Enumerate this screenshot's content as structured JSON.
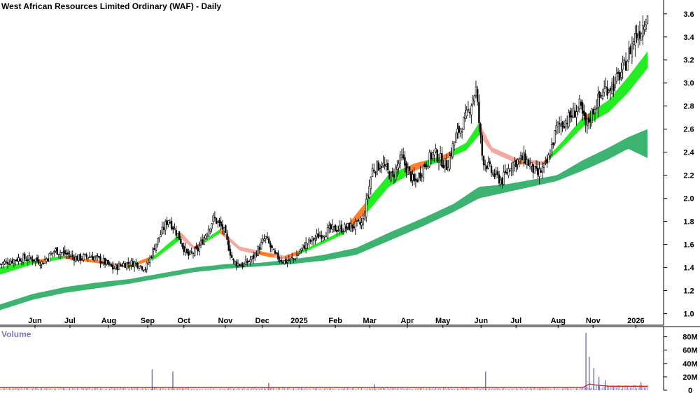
{
  "chart_data": [
    {
      "type": "candlestick",
      "title": "West African Resources Limited Ordinary (WAF) - Daily",
      "ylim": [
        0.9,
        3.72
      ],
      "y_ticks": [
        "1.0",
        "1.2",
        "1.4",
        "1.6",
        "1.8",
        "2.0",
        "2.2",
        "2.4",
        "2.6",
        "2.8",
        "3.0",
        "3.2",
        "3.4",
        "3.6"
      ],
      "x_ticks": [
        {
          "label": "Jun",
          "t": 0.054
        },
        {
          "label": "Jul",
          "t": 0.108
        },
        {
          "label": "Aug",
          "t": 0.168
        },
        {
          "label": "Sep",
          "t": 0.228
        },
        {
          "label": "Oct",
          "t": 0.284
        },
        {
          "label": "Nov",
          "t": 0.348
        },
        {
          "label": "Dec",
          "t": 0.405
        },
        {
          "label": "2025",
          "t": 0.462
        },
        {
          "label": "Feb",
          "t": 0.518
        },
        {
          "label": "Mar",
          "t": 0.571
        },
        {
          "label": "Apr",
          "t": 0.629
        },
        {
          "label": "May",
          "t": 0.684
        },
        {
          "label": "Jun",
          "t": 0.743
        },
        {
          "label": "Jul",
          "t": 0.797
        },
        {
          "label": "Aug",
          "t": 0.862
        },
        {
          "label": "Nov",
          "t": 0.916
        },
        {
          "label": "2026",
          "t": 0.982
        }
      ],
      "price_path": [
        [
          0.0,
          1.43
        ],
        [
          0.03,
          1.48
        ],
        [
          0.055,
          1.47
        ],
        [
          0.065,
          1.44
        ],
        [
          0.085,
          1.55
        ],
        [
          0.1,
          1.52
        ],
        [
          0.12,
          1.48
        ],
        [
          0.14,
          1.5
        ],
        [
          0.16,
          1.45
        ],
        [
          0.175,
          1.39
        ],
        [
          0.19,
          1.43
        ],
        [
          0.21,
          1.44
        ],
        [
          0.225,
          1.39
        ],
        [
          0.24,
          1.6
        ],
        [
          0.26,
          1.82
        ],
        [
          0.275,
          1.68
        ],
        [
          0.29,
          1.5
        ],
        [
          0.305,
          1.55
        ],
        [
          0.33,
          1.83
        ],
        [
          0.345,
          1.73
        ],
        [
          0.36,
          1.45
        ],
        [
          0.375,
          1.42
        ],
        [
          0.39,
          1.48
        ],
        [
          0.41,
          1.66
        ],
        [
          0.425,
          1.5
        ],
        [
          0.44,
          1.45
        ],
        [
          0.455,
          1.48
        ],
        [
          0.47,
          1.59
        ],
        [
          0.49,
          1.67
        ],
        [
          0.51,
          1.73
        ],
        [
          0.53,
          1.74
        ],
        [
          0.56,
          1.78
        ],
        [
          0.575,
          2.25
        ],
        [
          0.59,
          2.3
        ],
        [
          0.605,
          2.18
        ],
        [
          0.62,
          2.35
        ],
        [
          0.64,
          2.13
        ],
        [
          0.655,
          2.28
        ],
        [
          0.67,
          2.4
        ],
        [
          0.69,
          2.28
        ],
        [
          0.705,
          2.55
        ],
        [
          0.72,
          2.7
        ],
        [
          0.735,
          2.95
        ],
        [
          0.745,
          2.35
        ],
        [
          0.76,
          2.22
        ],
        [
          0.775,
          2.15
        ],
        [
          0.79,
          2.3
        ],
        [
          0.81,
          2.35
        ],
        [
          0.83,
          2.2
        ],
        [
          0.845,
          2.3
        ],
        [
          0.86,
          2.62
        ],
        [
          0.88,
          2.7
        ],
        [
          0.895,
          2.8
        ],
        [
          0.905,
          2.62
        ],
        [
          0.92,
          2.82
        ],
        [
          0.935,
          2.95
        ],
        [
          0.95,
          3.0
        ],
        [
          0.965,
          3.15
        ],
        [
          0.98,
          3.4
        ],
        [
          0.99,
          3.46
        ],
        [
          1.0,
          3.62
        ]
      ],
      "short_band": [
        [
          0.0,
          1.34,
          1.4
        ],
        [
          0.05,
          1.43,
          1.46
        ],
        [
          0.1,
          1.48,
          1.5
        ],
        [
          0.15,
          1.44,
          1.46
        ],
        [
          0.2,
          1.4,
          1.42
        ],
        [
          0.24,
          1.48,
          1.51
        ],
        [
          0.28,
          1.65,
          1.7
        ],
        [
          0.3,
          1.56,
          1.58
        ],
        [
          0.34,
          1.7,
          1.73
        ],
        [
          0.37,
          1.55,
          1.58
        ],
        [
          0.41,
          1.5,
          1.53
        ],
        [
          0.44,
          1.47,
          1.5
        ],
        [
          0.48,
          1.56,
          1.58
        ],
        [
          0.53,
          1.69,
          1.72
        ],
        [
          0.57,
          1.9,
          2.0
        ],
        [
          0.6,
          2.1,
          2.2
        ],
        [
          0.64,
          2.24,
          2.3
        ],
        [
          0.68,
          2.32,
          2.36
        ],
        [
          0.72,
          2.42,
          2.48
        ],
        [
          0.74,
          2.55,
          2.65
        ],
        [
          0.76,
          2.4,
          2.44
        ],
        [
          0.8,
          2.3,
          2.34
        ],
        [
          0.84,
          2.29,
          2.32
        ],
        [
          0.87,
          2.45,
          2.5
        ],
        [
          0.9,
          2.62,
          2.7
        ],
        [
          0.94,
          2.75,
          2.85
        ],
        [
          0.97,
          2.92,
          3.05
        ],
        [
          1.0,
          3.13,
          3.27
        ]
      ],
      "long_band": [
        [
          0.0,
          1.03,
          1.08
        ],
        [
          0.05,
          1.12,
          1.17
        ],
        [
          0.1,
          1.18,
          1.23
        ],
        [
          0.15,
          1.22,
          1.27
        ],
        [
          0.2,
          1.26,
          1.3
        ],
        [
          0.25,
          1.31,
          1.35
        ],
        [
          0.3,
          1.36,
          1.4
        ],
        [
          0.35,
          1.39,
          1.43
        ],
        [
          0.4,
          1.41,
          1.44
        ],
        [
          0.45,
          1.43,
          1.47
        ],
        [
          0.5,
          1.46,
          1.51
        ],
        [
          0.55,
          1.51,
          1.57
        ],
        [
          0.6,
          1.63,
          1.7
        ],
        [
          0.65,
          1.75,
          1.82
        ],
        [
          0.7,
          1.88,
          1.95
        ],
        [
          0.74,
          2.0,
          2.1
        ],
        [
          0.78,
          2.05,
          2.12
        ],
        [
          0.82,
          2.1,
          2.16
        ],
        [
          0.86,
          2.15,
          2.2
        ],
        [
          0.9,
          2.24,
          2.33
        ],
        [
          0.94,
          2.34,
          2.44
        ],
        [
          0.97,
          2.43,
          2.53
        ],
        [
          1.0,
          2.35,
          2.6
        ]
      ]
    },
    {
      "type": "bar",
      "title": "Volume",
      "ylim": [
        0,
        90
      ],
      "y_ticks": [
        "0",
        "20M",
        "40M",
        "60M",
        "80M"
      ],
      "spikes": [
        [
          0.235,
          31
        ],
        [
          0.267,
          28
        ],
        [
          0.415,
          11
        ],
        [
          0.578,
          9
        ],
        [
          0.75,
          28
        ],
        [
          0.905,
          86
        ],
        [
          0.91,
          50
        ],
        [
          0.917,
          33
        ],
        [
          0.925,
          20
        ],
        [
          0.935,
          15
        ],
        [
          0.99,
          12
        ]
      ],
      "average_level": 4
    }
  ]
}
